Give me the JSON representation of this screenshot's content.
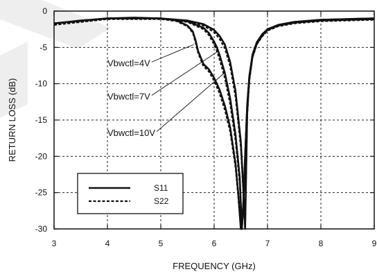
{
  "chart_data": {
    "type": "line",
    "title": "",
    "xlabel": "FREQUENCY (GHz)",
    "ylabel": "RETURN LOSS (dB)",
    "xlim": [
      3,
      9
    ],
    "ylim": [
      -30,
      0
    ],
    "xticks": [
      3,
      4,
      5,
      6,
      7,
      8,
      9
    ],
    "yticks": [
      0,
      -5,
      -10,
      -15,
      -20,
      -25,
      -30
    ],
    "grid": true,
    "legend_position": "bottom-left",
    "annotations": [
      {
        "text": "Vbwctl=4V",
        "text_at": [
          4.0,
          -7.2
        ],
        "points_to": [
          5.62,
          -4.6
        ]
      },
      {
        "text": "Vbwctl=7V",
        "text_at": [
          4.0,
          -11.8
        ],
        "points_to": [
          6.08,
          -5.5
        ]
      },
      {
        "text": "Vbwctl=10V",
        "text_at": [
          4.0,
          -16.8
        ],
        "points_to": [
          6.18,
          -8.6
        ]
      }
    ],
    "series": [
      {
        "name": "S11",
        "style": "solid",
        "color": "#111111",
        "x": [
          3.0,
          3.5,
          4.0,
          4.5,
          5.0,
          5.3,
          5.5,
          5.6,
          5.65,
          5.7,
          5.8,
          5.9,
          6.0,
          6.1,
          6.2,
          6.3,
          6.4,
          6.45,
          6.5,
          6.52,
          6.55,
          6.58,
          6.62,
          6.66,
          6.72,
          6.8,
          6.9,
          7.0,
          7.2,
          7.5,
          8.0,
          8.5,
          9.0
        ],
        "y": [
          -1.7,
          -1.3,
          -1.0,
          -0.9,
          -1.0,
          -1.3,
          -2.0,
          -2.8,
          -4.0,
          -5.5,
          -7.3,
          -8.0,
          -9.2,
          -10.8,
          -13.0,
          -16.0,
          -21.0,
          -25.0,
          -30.0,
          -30.0,
          -26.0,
          -20.0,
          -13.0,
          -9.0,
          -6.0,
          -4.3,
          -3.2,
          -2.5,
          -1.9,
          -1.5,
          -1.2,
          -1.1,
          -1.0
        ]
      },
      {
        "name": "S11 (Vbwctl=7V)",
        "style": "solid",
        "color": "#111111",
        "x": [
          3.0,
          4.0,
          5.0,
          5.5,
          5.8,
          5.9,
          6.0,
          6.05,
          6.1,
          6.2,
          6.3,
          6.4,
          6.48,
          6.52,
          6.55,
          6.58,
          6.62,
          6.66,
          6.72,
          6.8,
          6.9,
          7.0,
          7.2,
          7.5,
          8.0,
          8.5,
          9.0
        ],
        "y": [
          -1.7,
          -1.0,
          -1.0,
          -1.4,
          -2.3,
          -3.0,
          -4.2,
          -5.0,
          -6.0,
          -8.5,
          -12.0,
          -17.0,
          -23.0,
          -30.0,
          -26.0,
          -20.0,
          -13.0,
          -9.0,
          -6.0,
          -4.3,
          -3.2,
          -2.5,
          -1.9,
          -1.5,
          -1.2,
          -1.1,
          -1.0
        ]
      },
      {
        "name": "S11 (Vbwctl=10V)",
        "style": "solid",
        "color": "#111111",
        "x": [
          3.0,
          4.0,
          5.0,
          5.5,
          5.8,
          6.0,
          6.1,
          6.2,
          6.3,
          6.4,
          6.5,
          6.55,
          6.58,
          6.62,
          6.66,
          6.72,
          6.8,
          6.9,
          7.0,
          7.2,
          7.5,
          8.0,
          8.5,
          9.0
        ],
        "y": [
          -1.7,
          -1.0,
          -1.0,
          -1.3,
          -1.8,
          -2.6,
          -3.4,
          -4.6,
          -7.0,
          -11.0,
          -18.0,
          -25.0,
          -30.0,
          -14.0,
          -9.2,
          -6.1,
          -4.4,
          -3.3,
          -2.6,
          -2.0,
          -1.6,
          -1.3,
          -1.2,
          -1.1
        ]
      },
      {
        "name": "S22",
        "style": "dashed",
        "color": "#111111",
        "x": [
          3.0,
          3.5,
          4.0,
          4.5,
          5.0,
          5.3,
          5.5,
          5.6,
          5.65,
          5.7,
          5.8,
          5.9,
          6.0,
          6.1,
          6.2,
          6.3,
          6.4,
          6.45,
          6.5,
          6.52,
          6.55,
          6.58,
          6.62,
          6.66,
          6.72,
          6.8,
          6.9,
          7.0,
          7.2,
          7.5,
          8.0,
          8.5,
          9.0
        ],
        "y": [
          -1.9,
          -1.4,
          -1.1,
          -1.0,
          -1.1,
          -1.4,
          -2.1,
          -3.0,
          -4.3,
          -5.8,
          -7.6,
          -8.3,
          -9.6,
          -11.3,
          -13.6,
          -16.6,
          -21.5,
          -25.5,
          -30.0,
          -30.0,
          -26.5,
          -20.5,
          -13.5,
          -9.4,
          -6.3,
          -4.5,
          -3.4,
          -2.6,
          -2.0,
          -1.6,
          -1.3,
          -1.2,
          -1.1
        ]
      },
      {
        "name": "S22 (Vbwctl=7V)",
        "style": "dashed",
        "color": "#111111",
        "x": [
          3.0,
          4.0,
          5.0,
          5.5,
          5.8,
          5.9,
          6.0,
          6.05,
          6.1,
          6.2,
          6.3,
          6.4,
          6.48,
          6.52,
          6.55,
          6.58,
          6.62,
          6.66,
          6.72,
          6.8,
          6.9,
          7.0,
          7.2,
          7.5,
          8.0,
          8.5,
          9.0
        ],
        "y": [
          -1.9,
          -1.1,
          -1.1,
          -1.5,
          -2.5,
          -3.3,
          -4.6,
          -5.5,
          -6.6,
          -9.2,
          -12.8,
          -17.8,
          -23.8,
          -30.0,
          -26.5,
          -20.5,
          -13.5,
          -9.4,
          -6.3,
          -4.5,
          -3.4,
          -2.6,
          -2.0,
          -1.6,
          -1.3,
          -1.2,
          -1.1
        ]
      },
      {
        "name": "S22 (Vbwctl=10V)",
        "style": "dashed",
        "color": "#111111",
        "x": [
          3.0,
          4.0,
          5.0,
          5.5,
          5.8,
          6.0,
          6.1,
          6.2,
          6.3,
          6.4,
          6.5,
          6.55,
          6.58,
          6.62,
          6.66,
          6.72,
          6.8,
          6.9,
          7.0,
          7.2,
          7.5,
          8.0,
          8.5,
          9.0
        ],
        "y": [
          -1.9,
          -1.1,
          -1.1,
          -1.4,
          -2.0,
          -2.9,
          -3.8,
          -5.1,
          -7.6,
          -11.8,
          -18.8,
          -25.5,
          -30.0,
          -14.5,
          -9.6,
          -6.4,
          -4.6,
          -3.5,
          -2.7,
          -2.1,
          -1.7,
          -1.4,
          -1.3,
          -1.2
        ]
      }
    ]
  },
  "legend": {
    "items": [
      {
        "label": "S11",
        "style": "solid"
      },
      {
        "label": "S22",
        "style": "dashed"
      }
    ]
  },
  "colors": {
    "ink": "#111111",
    "grid": "#222222",
    "watermark": "#e6e6e6"
  }
}
